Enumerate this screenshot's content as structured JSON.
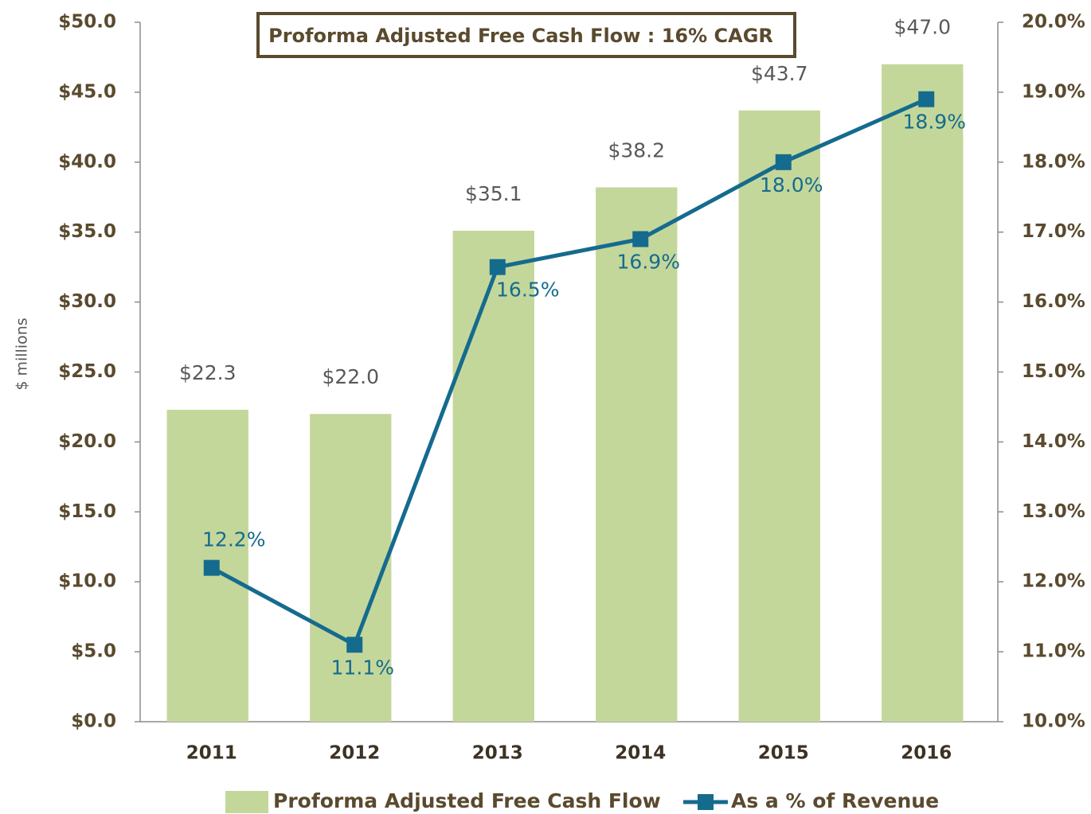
{
  "chart_data": {
    "type": "bar_line",
    "title": "Proforma Adjusted Free Cash Flow : 16% CAGR",
    "ylabel": "$ millions",
    "categories": [
      "2011",
      "2012",
      "2013",
      "2014",
      "2015",
      "2016"
    ],
    "series": [
      {
        "name": "Proforma Adjusted Free Cash Flow",
        "color": "#c4d79b",
        "type": "bar",
        "values": [
          22.3,
          22.0,
          35.1,
          38.2,
          43.7,
          47.0
        ],
        "value_labels": [
          "$22.3",
          "$22.0",
          "$35.1",
          "$38.2",
          "$43.7",
          "$47.0"
        ]
      },
      {
        "name": "As a % of Revenue",
        "color": "#156b8e",
        "type": "line",
        "axis": "y2",
        "values": [
          12.2,
          11.1,
          16.5,
          16.9,
          18.0,
          18.9
        ],
        "value_labels": [
          "12.2%",
          "11.1%",
          "16.5%",
          "16.9%",
          "18.0%",
          "18.9%"
        ]
      }
    ],
    "ylim": [
      0,
      50
    ],
    "yticks": [
      {
        "value": 0,
        "label": "$0.0"
      },
      {
        "value": 5,
        "label": "$5.0"
      },
      {
        "value": 10,
        "label": "$10.0"
      },
      {
        "value": 15,
        "label": "$15.0"
      },
      {
        "value": 20,
        "label": "$20.0"
      },
      {
        "value": 25,
        "label": "$25.0"
      },
      {
        "value": 30,
        "label": "$30.0"
      },
      {
        "value": 35,
        "label": "$35.0"
      },
      {
        "value": 40,
        "label": "$40.0"
      },
      {
        "value": 45,
        "label": "$45.0"
      },
      {
        "value": 50,
        "label": "$50.0"
      }
    ],
    "y2lim": [
      10,
      20
    ],
    "y2ticks": [
      {
        "value": 10,
        "label": "10.0%"
      },
      {
        "value": 11,
        "label": "11.0%"
      },
      {
        "value": 12,
        "label": "12.0%"
      },
      {
        "value": 13,
        "label": "13.0%"
      },
      {
        "value": 14,
        "label": "14.0%"
      },
      {
        "value": 15,
        "label": "15.0%"
      },
      {
        "value": 16,
        "label": "16.0%"
      },
      {
        "value": 17,
        "label": "17.0%"
      },
      {
        "value": 18,
        "label": "18.0%"
      },
      {
        "value": 19,
        "label": "19.0%"
      },
      {
        "value": 20,
        "label": "20.0%"
      }
    ],
    "grid": false,
    "legend": "bottom"
  }
}
